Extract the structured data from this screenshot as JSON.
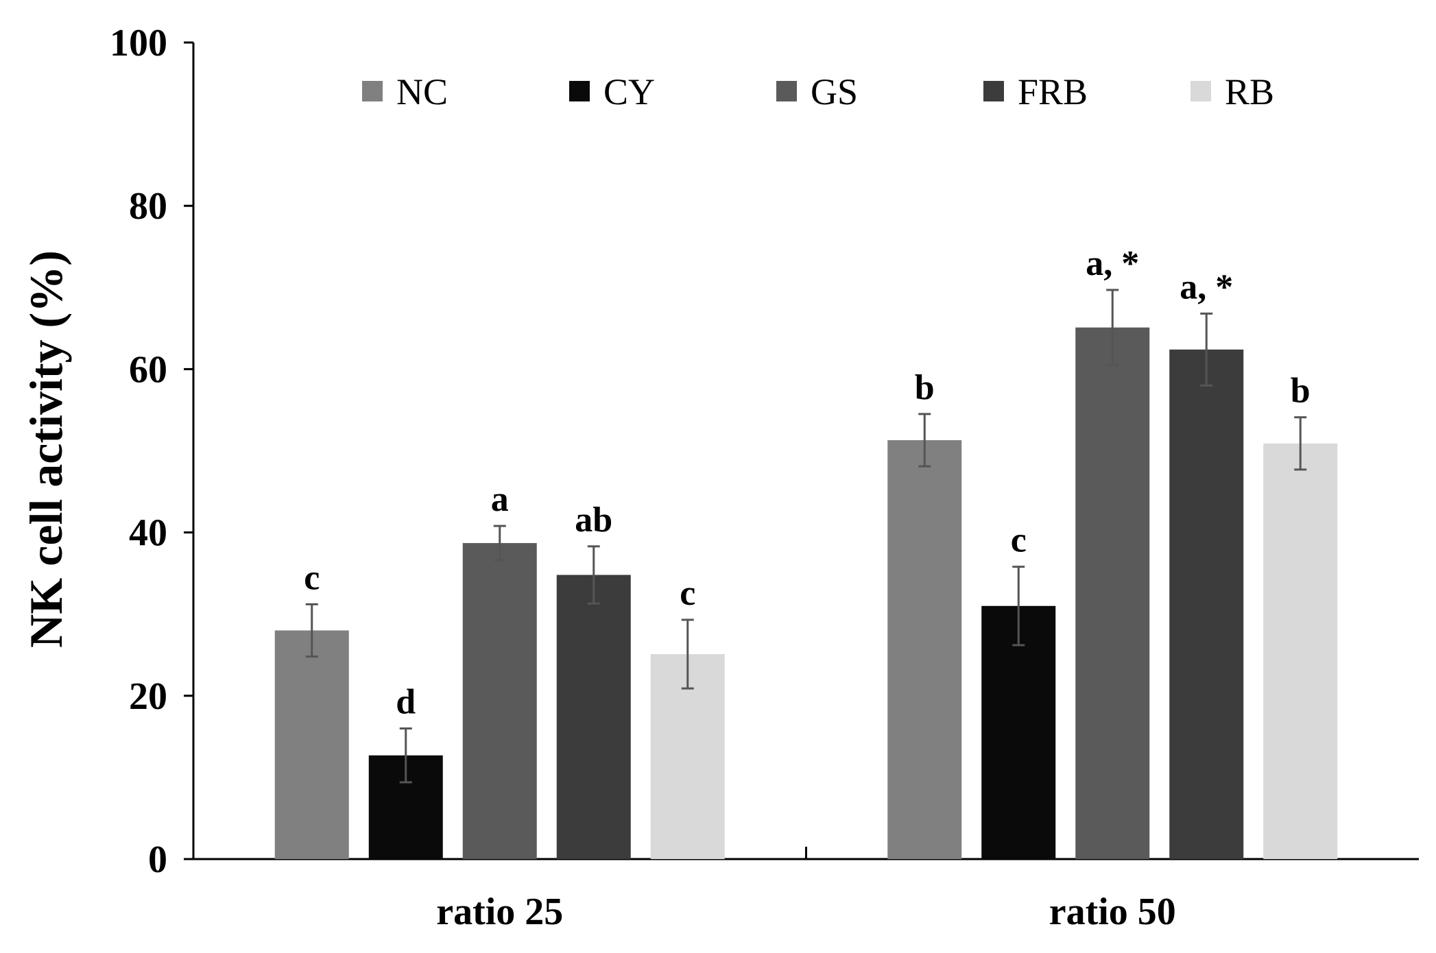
{
  "chart_data": {
    "type": "bar",
    "title": "",
    "xlabel": "",
    "ylabel": "NK cell activity (%)",
    "ylim": [
      0,
      100
    ],
    "yticks": [
      0,
      20,
      40,
      60,
      80,
      100
    ],
    "categories": [
      "ratio 25",
      "ratio 50"
    ],
    "legend_position": "top",
    "series": [
      {
        "name": "NC",
        "color": "#808080",
        "values": [
          28.0,
          51.3
        ],
        "errors": [
          3.2,
          3.2
        ],
        "labels": [
          "c",
          "b"
        ]
      },
      {
        "name": "CY",
        "color": "#0a0a0a",
        "values": [
          12.7,
          31.0
        ],
        "errors": [
          3.3,
          4.8
        ],
        "labels": [
          "d",
          "c"
        ]
      },
      {
        "name": "GS",
        "color": "#5a5a5a",
        "values": [
          38.7,
          65.1
        ],
        "errors": [
          2.1,
          4.6
        ],
        "labels": [
          "a",
          "a, *"
        ]
      },
      {
        "name": "FRB",
        "color": "#3c3c3c",
        "values": [
          34.8,
          62.4
        ],
        "errors": [
          3.5,
          4.4
        ],
        "labels": [
          "ab",
          "a, *"
        ]
      },
      {
        "name": "RB",
        "color": "#d9d9d9",
        "values": [
          25.1,
          50.9
        ],
        "errors": [
          4.2,
          3.2
        ],
        "labels": [
          "c",
          "b"
        ]
      }
    ],
    "grid": false
  }
}
